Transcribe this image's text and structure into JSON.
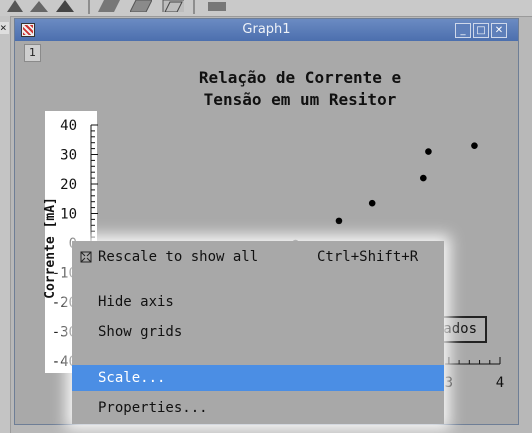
{
  "window": {
    "title": "Graph1",
    "tab_label": "1",
    "minimize_glyph": "_",
    "maximize_glyph": "□",
    "close_glyph": "✕"
  },
  "left_window": {
    "close_glyph": "×"
  },
  "chart_data": {
    "type": "scatter",
    "title_lines": [
      "Relação de Corrente e",
      "Tensão em um Resitor"
    ],
    "ylabel": "Corrente [mA]",
    "xlabel": "",
    "y_ticks": [
      40,
      30,
      20,
      10,
      0,
      -10,
      -20,
      -30,
      -40
    ],
    "x_ticks": [
      3,
      4
    ],
    "ylim": [
      -40,
      40
    ],
    "xlim": [
      -4,
      4
    ],
    "grid": false,
    "points": [
      {
        "x": 0.0,
        "y": 0.0
      },
      {
        "x": 0.85,
        "y": 7.5
      },
      {
        "x": 1.5,
        "y": 13.5
      },
      {
        "x": 2.5,
        "y": 22.0
      },
      {
        "x": 2.6,
        "y": 31.0
      },
      {
        "x": 3.5,
        "y": 33.0
      }
    ],
    "legend_text": "ados"
  },
  "context_menu": {
    "items": [
      {
        "label": "Rescale to show all",
        "shortcut": "Ctrl+Shift+R",
        "has_icon": true,
        "icon": "rescale-icon"
      },
      {
        "label": "Hide axis",
        "shortcut": ""
      },
      {
        "label": "Show grids",
        "shortcut": ""
      },
      {
        "label": "Scale...",
        "shortcut": "",
        "selected": true
      },
      {
        "label": "Properties...",
        "shortcut": ""
      }
    ]
  },
  "colors": {
    "titlebar": "#4c6fae",
    "menu_selected": "#4b8ee4",
    "window_bg": "#a9a9a9"
  }
}
